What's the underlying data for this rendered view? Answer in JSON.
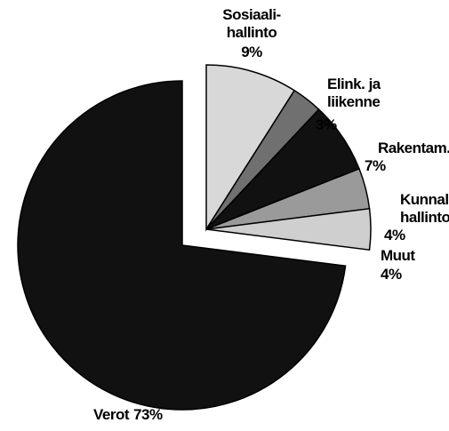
{
  "chart_data": {
    "type": "pie",
    "categories": [
      [
        "Sosiaali-",
        "hallinto"
      ],
      [
        "Elink. ja",
        "liikenne"
      ],
      [
        "Rakentam."
      ],
      [
        "Kunnall.",
        "hallintoi"
      ],
      [
        "Muut"
      ],
      [
        "Verot"
      ]
    ],
    "values": [
      9,
      3,
      7,
      4,
      4,
      73
    ],
    "value_labels": [
      "9%",
      "3%",
      "7%",
      "4%",
      "4%",
      "73%"
    ],
    "colors": [
      "#d8d8d8",
      "#707070",
      "#111111",
      "#9a9a9a",
      "#cfcfcf",
      "#111111"
    ]
  }
}
